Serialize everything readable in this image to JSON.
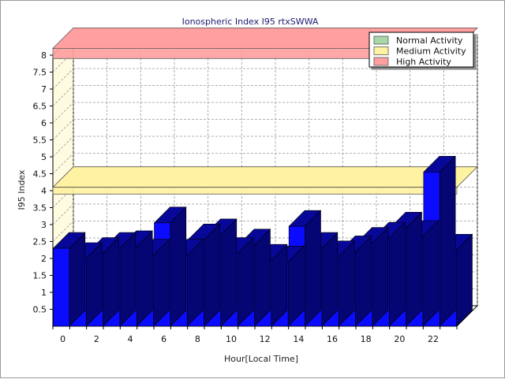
{
  "chart_data": {
    "type": "bar",
    "title": "Ionospheric Index I95 rtxSWWA",
    "xlabel": "Hour[Local Time]",
    "ylabel": "I95 Index",
    "ylim": [
      0,
      8
    ],
    "yticks": [
      "0.5",
      "1",
      "1.5",
      "2",
      "2.5",
      "3",
      "3.5",
      "4",
      "4.5",
      "5",
      "5.5",
      "6",
      "6.5",
      "7",
      "7.5",
      "8"
    ],
    "xticks": [
      "0",
      "2",
      "4",
      "6",
      "8",
      "10",
      "12",
      "14",
      "16",
      "18",
      "20",
      "22"
    ],
    "categories": [
      "0",
      "1",
      "2",
      "3",
      "4",
      "5",
      "6",
      "7",
      "8",
      "9",
      "10",
      "11",
      "12",
      "13",
      "14",
      "15",
      "16",
      "17",
      "18",
      "19",
      "20",
      "21",
      "22",
      "23"
    ],
    "series": [
      {
        "values": [
          2.3,
          2.0,
          2.15,
          2.3,
          2.35,
          2.1,
          3.05,
          2.1,
          2.55,
          2.7,
          2.15,
          2.4,
          1.95,
          1.9,
          2.95,
          2.3,
          2.05,
          2.2,
          2.45,
          2.6,
          2.9,
          2.65,
          4.55,
          2.25
        ],
        "color": "#0b0bff"
      }
    ],
    "bands": [
      {
        "name": "Normal Activity",
        "from": 0,
        "to": 2,
        "color": "#a8d8a8"
      },
      {
        "name": "Medium Activity",
        "from": 3.9,
        "to": 4.1,
        "color": "#fff2a0"
      },
      {
        "name": "High Activity",
        "from": 7.9,
        "to": 8.2,
        "color": "#ff9f9f"
      }
    ],
    "legend": {
      "position": "top-right",
      "entries": [
        {
          "label": "Normal Activity",
          "color": "#a8d8a8"
        },
        {
          "label": "Medium Activity",
          "color": "#fff2a0"
        },
        {
          "label": "High Activity",
          "color": "#ff9f9f"
        }
      ]
    },
    "grid": true
  }
}
